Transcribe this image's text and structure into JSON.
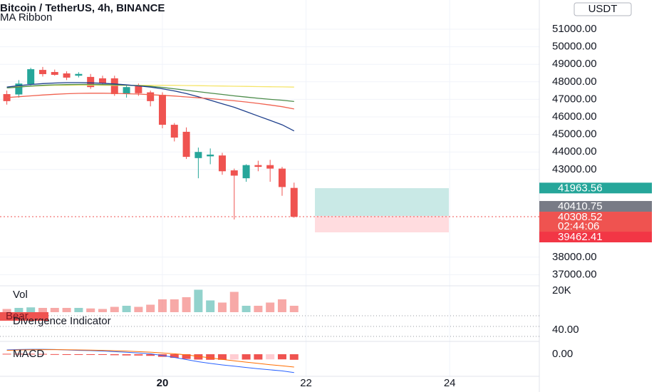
{
  "chart_data": [
    {
      "type": "candlestick",
      "title": "Bitcoin / TetherUS, 4h, BINANCE",
      "subtitle": "MA Ribbon",
      "unit": "USDT",
      "xlim": [
        -0.57,
        44.49
      ],
      "xticks": [
        {
          "value": 13,
          "label": "20"
        },
        {
          "value": 25,
          "label": "22"
        },
        {
          "value": 37,
          "label": "24"
        }
      ],
      "ylim": [
        36407,
        52667
      ],
      "yticks": [
        {
          "value": 51000,
          "label": "51000.00"
        },
        {
          "value": 50000,
          "label": "50000.00"
        },
        {
          "value": 49000,
          "label": "49000.00"
        },
        {
          "value": 48000,
          "label": "48000.00"
        },
        {
          "value": 47000,
          "label": "47000.00"
        },
        {
          "value": 46000,
          "label": "46000.00"
        },
        {
          "value": 45000,
          "label": "45000.00"
        },
        {
          "value": 44000,
          "label": "44000.00"
        },
        {
          "value": 43000,
          "label": "43000.00"
        },
        {
          "value": 38000,
          "label": "38000.00"
        },
        {
          "value": 37000,
          "label": "37000.00"
        }
      ],
      "grid": true,
      "up_color": "#26a69a",
      "down_color": "#ef5350",
      "open": [
        47300,
        47280,
        47870,
        48680,
        48560,
        48480,
        48350,
        48280,
        48200,
        48200,
        47300,
        47750,
        47400,
        47260,
        45550,
        45150,
        43650,
        43750,
        43800,
        42950,
        42500,
        43250,
        43250,
        43050,
        41950
      ],
      "high": [
        47500,
        48100,
        48800,
        48850,
        48700,
        48600,
        48550,
        48450,
        48350,
        48350,
        47850,
        47900,
        47500,
        47400,
        45650,
        45400,
        44250,
        44200,
        43950,
        43050,
        43300,
        43500,
        43550,
        43150,
        42250
      ],
      "low": [
        46700,
        47100,
        47800,
        48300,
        48350,
        48100,
        48250,
        47600,
        47800,
        47200,
        47100,
        47200,
        46600,
        45350,
        44600,
        43600,
        42500,
        43300,
        42700,
        40150,
        42300,
        42900,
        42300,
        41500,
        40250
      ],
      "close": [
        46900,
        47900,
        48720,
        48440,
        48400,
        48240,
        48450,
        47700,
        47900,
        47300,
        47700,
        47350,
        46900,
        45550,
        44820,
        43720,
        44000,
        43850,
        42900,
        42650,
        43250,
        43150,
        43050,
        42000,
        40300
      ],
      "series": [
        {
          "color": "#f5e56b",
          "values": [
            47700,
            47720,
            47750,
            47780,
            47800,
            47800,
            47810,
            47810,
            47800,
            47800,
            47800,
            47800,
            47800,
            47800,
            47800,
            47790,
            47780,
            47770,
            47760,
            47750,
            47740,
            47730,
            47720,
            47710,
            47700
          ]
        },
        {
          "color": "#4c8c4a",
          "values": [
            47650,
            47700,
            47760,
            47800,
            47830,
            47840,
            47850,
            47850,
            47840,
            47830,
            47810,
            47780,
            47740,
            47680,
            47600,
            47520,
            47440,
            47360,
            47280,
            47200,
            47130,
            47060,
            47000,
            46950,
            46880
          ]
        },
        {
          "color": "#1e3f8c",
          "values": [
            47700,
            47780,
            47850,
            47900,
            47930,
            47950,
            47950,
            47940,
            47920,
            47880,
            47830,
            47770,
            47700,
            47600,
            47480,
            47330,
            47150,
            46950,
            46750,
            46550,
            46300,
            46050,
            45800,
            45550,
            45200
          ]
        },
        {
          "color": "#f0614f",
          "values": [
            47100,
            47150,
            47200,
            47250,
            47290,
            47320,
            47340,
            47350,
            47350,
            47340,
            47320,
            47300,
            47270,
            47230,
            47190,
            47140,
            47090,
            47040,
            46980,
            46920,
            46850,
            46770,
            46680,
            46580,
            46450
          ]
        }
      ],
      "price_tags": [
        {
          "value": 41963.56,
          "color": "#26a69a"
        },
        {
          "value": 40410.75,
          "color": "#787b86"
        },
        {
          "value": 40308.52,
          "color": "#ef5350",
          "countdown": "02:44:06"
        },
        {
          "value": 39462.41,
          "color": "#f23645"
        }
      ]
    },
    {
      "type": "volume",
      "title": "Vol",
      "ylim": [
        0,
        24000
      ],
      "yticks": [
        {
          "value": 20000,
          "label": "20K"
        }
      ],
      "values": [
        3000,
        4000,
        4500,
        4000,
        4000,
        4000,
        4000,
        3500,
        3000,
        5000,
        6000,
        5000,
        7000,
        12000,
        12000,
        14000,
        21000,
        11000,
        9000,
        19000,
        6000,
        6000,
        9000,
        12000,
        6000
      ]
    },
    {
      "type": "oscillator",
      "title": "Divergence Indicator",
      "label": "Bear",
      "ylim": [
        0,
        100
      ],
      "yticks": [
        {
          "value": 40,
          "label": "40.00"
        }
      ]
    },
    {
      "type": "macd",
      "title": "MACD",
      "ylim": [
        -1100,
        500
      ],
      "yticks": [
        {
          "value": 0,
          "label": "0.00"
        }
      ],
      "rising_color": "#ffcdd2",
      "falling_color": "#ef5350",
      "histogram": [
        20,
        20,
        20,
        15,
        5,
        -10,
        -20,
        -20,
        -30,
        -45,
        -55,
        -60,
        -75,
        -120,
        -170,
        -220,
        -250,
        -260,
        -260,
        -250,
        -250,
        -250,
        -240,
        -240,
        -260
      ],
      "series": [
        {
          "color": "#2962ff",
          "values": [
            200,
            220,
            230,
            230,
            220,
            200,
            180,
            170,
            150,
            120,
            90,
            60,
            20,
            -60,
            -150,
            -250,
            -350,
            -430,
            -500,
            -560,
            -620,
            -680,
            -730,
            -780,
            -860
          ]
        },
        {
          "color": "#ff6d00",
          "values": [
            180,
            200,
            210,
            215,
            215,
            210,
            200,
            190,
            180,
            165,
            145,
            120,
            95,
            60,
            20,
            -30,
            -100,
            -170,
            -240,
            -310,
            -370,
            -430,
            -490,
            -540,
            -600
          ]
        }
      ]
    }
  ]
}
